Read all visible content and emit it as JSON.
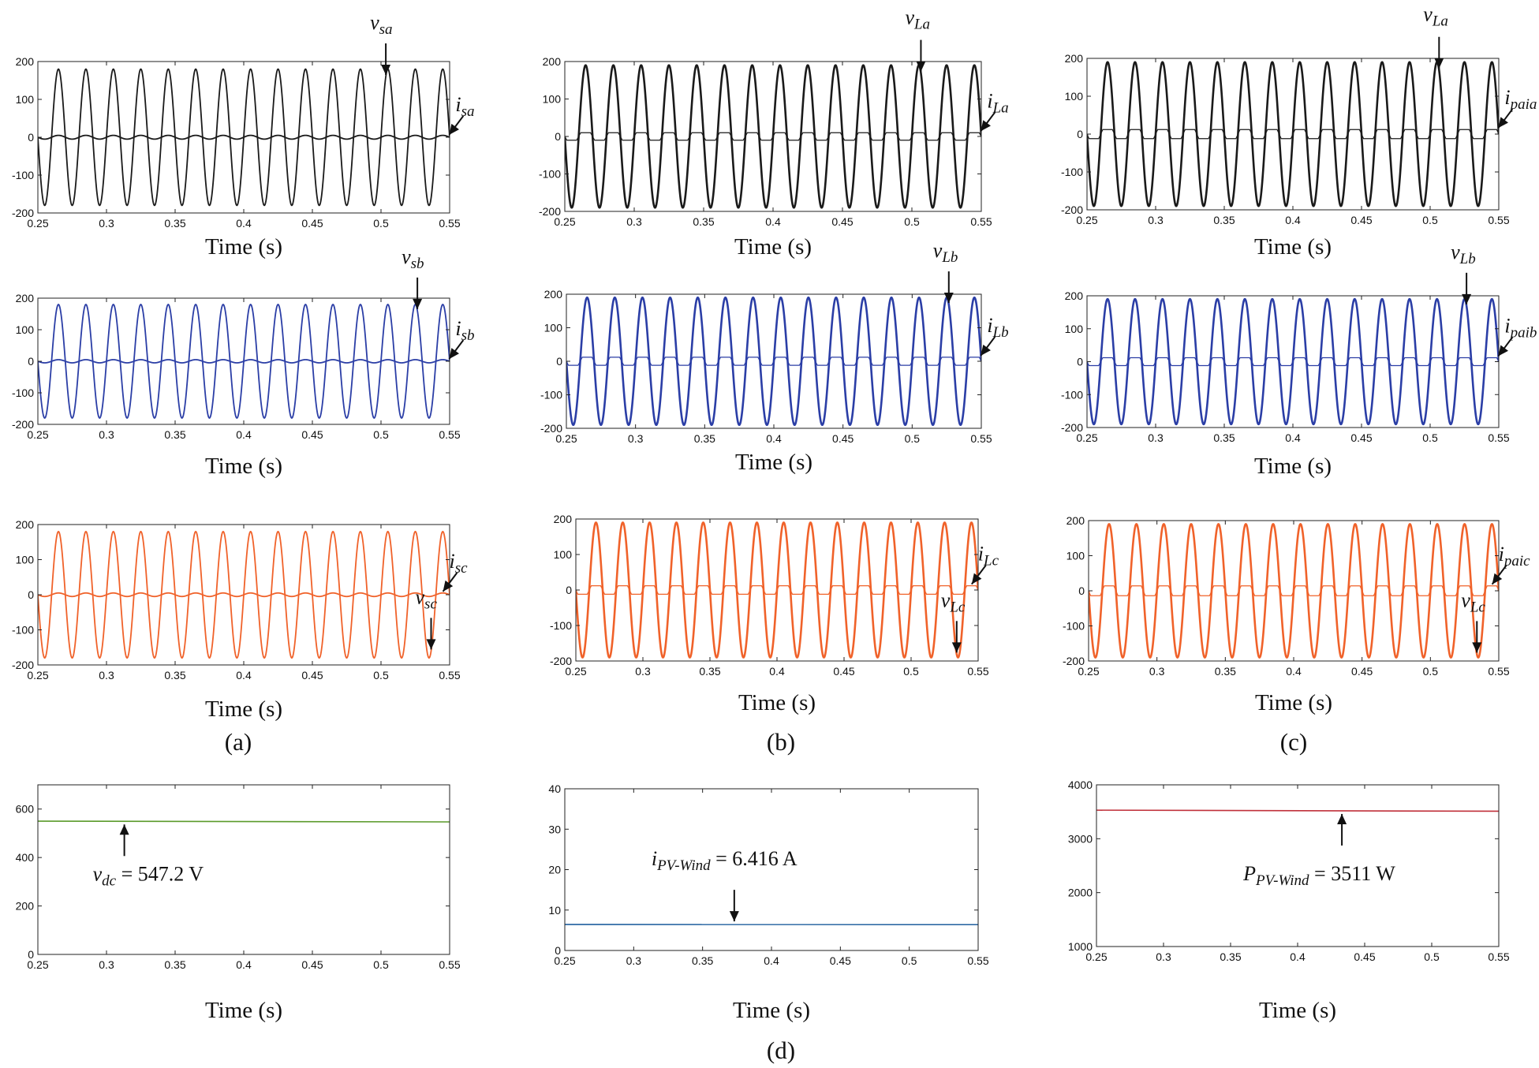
{
  "figure_labels": [
    "(a)",
    "(b)",
    "(c)",
    "(d)"
  ],
  "chart_data": [
    {
      "id": "a1",
      "type": "line",
      "xlabel": "Time (s)",
      "xlim": [
        0.25,
        0.55
      ],
      "ylim": [
        -200,
        200
      ],
      "xticks": [
        "0.25",
        "0.3",
        "0.35",
        "0.4",
        "0.45",
        "0.5",
        "0.55"
      ],
      "yticks": [
        "200",
        "100",
        "0",
        "-100",
        "-200"
      ],
      "color": "#1a1a1a",
      "series": [
        {
          "name": "v_sa",
          "kind": "sine",
          "amplitude": 180,
          "frequency_hz": 50
        },
        {
          "name": "i_sa",
          "kind": "sine",
          "amplitude": 5,
          "frequency_hz": 50
        }
      ],
      "annotations": [
        {
          "var": "v",
          "sub": "sa",
          "value": ""
        },
        {
          "var": "i",
          "sub": "sa",
          "value": ""
        }
      ]
    },
    {
      "id": "b1",
      "type": "line",
      "xlabel": "Time (s)",
      "xlim": [
        0.25,
        0.55
      ],
      "ylim": [
        -200,
        200
      ],
      "xticks": [
        "0.25",
        "0.3",
        "0.35",
        "0.4",
        "0.45",
        "0.5",
        "0.55"
      ],
      "yticks": [
        "200",
        "100",
        "0",
        "-100",
        "-200"
      ],
      "color": "#1a1a1a",
      "series": [
        {
          "name": "v_La",
          "kind": "sine",
          "amplitude": 190,
          "frequency_hz": 50
        },
        {
          "name": "i_La",
          "kind": "square",
          "amplitude": 10,
          "frequency_hz": 50
        }
      ],
      "annotations": [
        {
          "var": "v",
          "sub": "La",
          "value": ""
        },
        {
          "var": "i",
          "sub": "La",
          "value": ""
        }
      ]
    },
    {
      "id": "c1",
      "type": "line",
      "xlabel": "Time (s)",
      "xlim": [
        0.25,
        0.55
      ],
      "ylim": [
        -200,
        200
      ],
      "xticks": [
        "0.25",
        "0.3",
        "0.35",
        "0.4",
        "0.45",
        "0.5",
        "0.55"
      ],
      "yticks": [
        "200",
        "100",
        "0",
        "-100",
        "-200"
      ],
      "color": "#1a1a1a",
      "series": [
        {
          "name": "v_La",
          "kind": "sine",
          "amplitude": 190,
          "frequency_hz": 50
        },
        {
          "name": "i_paia",
          "kind": "square",
          "amplitude": 12,
          "frequency_hz": 50
        }
      ],
      "annotations": [
        {
          "var": "v",
          "sub": "La",
          "value": ""
        },
        {
          "var": "i",
          "sub": "paia",
          "value": ""
        }
      ]
    },
    {
      "id": "a2",
      "type": "line",
      "xlabel": "Time (s)",
      "xlim": [
        0.25,
        0.55
      ],
      "ylim": [
        -200,
        200
      ],
      "xticks": [
        "0.25",
        "0.3",
        "0.35",
        "0.4",
        "0.45",
        "0.5",
        "0.55"
      ],
      "yticks": [
        "200",
        "100",
        "0",
        "-100",
        "-200"
      ],
      "color": "#2b3ea6",
      "series": [
        {
          "name": "v_sb",
          "kind": "sine",
          "amplitude": 180,
          "frequency_hz": 50
        },
        {
          "name": "i_sb",
          "kind": "sine",
          "amplitude": 5,
          "frequency_hz": 50
        }
      ],
      "annotations": [
        {
          "var": "v",
          "sub": "sb",
          "value": ""
        },
        {
          "var": "i",
          "sub": "sb",
          "value": ""
        }
      ]
    },
    {
      "id": "b2",
      "type": "line",
      "xlabel": "Time (s)",
      "xlim": [
        0.25,
        0.55
      ],
      "ylim": [
        -200,
        200
      ],
      "xticks": [
        "0.25",
        "0.3",
        "0.35",
        "0.4",
        "0.45",
        "0.5",
        "0.55"
      ],
      "yticks": [
        "200",
        "100",
        "0",
        "-100",
        "-200"
      ],
      "color": "#2b3ea6",
      "series": [
        {
          "name": "v_Lb",
          "kind": "sine",
          "amplitude": 190,
          "frequency_hz": 50
        },
        {
          "name": "i_Lb",
          "kind": "square",
          "amplitude": 12,
          "frequency_hz": 50
        }
      ],
      "annotations": [
        {
          "var": "v",
          "sub": "Lb",
          "value": ""
        },
        {
          "var": "i",
          "sub": "Lb",
          "value": ""
        }
      ]
    },
    {
      "id": "c2",
      "type": "line",
      "xlabel": "Time (s)",
      "xlim": [
        0.25,
        0.55
      ],
      "ylim": [
        -200,
        200
      ],
      "xticks": [
        "0.25",
        "0.3",
        "0.35",
        "0.4",
        "0.45",
        "0.5",
        "0.55"
      ],
      "yticks": [
        "200",
        "100",
        "0",
        "-100",
        "-200"
      ],
      "color": "#2b3ea6",
      "series": [
        {
          "name": "v_Lb",
          "kind": "sine",
          "amplitude": 190,
          "frequency_hz": 50
        },
        {
          "name": "i_paib",
          "kind": "square",
          "amplitude": 12,
          "frequency_hz": 50
        }
      ],
      "annotations": [
        {
          "var": "v",
          "sub": "Lb",
          "value": ""
        },
        {
          "var": "i",
          "sub": "paib",
          "value": ""
        }
      ]
    },
    {
      "id": "a3",
      "type": "line",
      "xlabel": "Time (s)",
      "xlim": [
        0.25,
        0.55
      ],
      "ylim": [
        -200,
        200
      ],
      "xticks": [
        "0.25",
        "0.3",
        "0.35",
        "0.4",
        "0.45",
        "0.5",
        "0.55"
      ],
      "yticks": [
        "200",
        "100",
        "0",
        "-100",
        "-200"
      ],
      "color": "#f0622a",
      "series": [
        {
          "name": "v_sc",
          "kind": "sine",
          "amplitude": 180,
          "frequency_hz": 50
        },
        {
          "name": "i_sc",
          "kind": "sine",
          "amplitude": 5,
          "frequency_hz": 50
        }
      ],
      "annotations": [
        {
          "var": "v",
          "sub": "sc",
          "value": ""
        },
        {
          "var": "i",
          "sub": "sc",
          "value": ""
        }
      ]
    },
    {
      "id": "b3",
      "type": "line",
      "xlabel": "Time (s)",
      "xlim": [
        0.25,
        0.55
      ],
      "ylim": [
        -200,
        200
      ],
      "xticks": [
        "0.25",
        "0.3",
        "0.35",
        "0.4",
        "0.45",
        "0.5",
        "0.55"
      ],
      "yticks": [
        "200",
        "100",
        "0",
        "-100",
        "-200"
      ],
      "color": "#f0622a",
      "series": [
        {
          "name": "v_Lc",
          "kind": "sine",
          "amplitude": 190,
          "frequency_hz": 50
        },
        {
          "name": "i_Lc",
          "kind": "square",
          "amplitude": 12,
          "frequency_hz": 50
        }
      ],
      "annotations": [
        {
          "var": "v",
          "sub": "Lc",
          "value": ""
        },
        {
          "var": "i",
          "sub": "Lc",
          "value": ""
        }
      ]
    },
    {
      "id": "c3",
      "type": "line",
      "xlabel": "Time (s)",
      "xlim": [
        0.25,
        0.55
      ],
      "ylim": [
        -200,
        200
      ],
      "xticks": [
        "0.25",
        "0.3",
        "0.35",
        "0.4",
        "0.45",
        "0.5",
        "0.55"
      ],
      "yticks": [
        "200",
        "100",
        "0",
        "-100",
        "-200"
      ],
      "color": "#f0622a",
      "series": [
        {
          "name": "v_Lc",
          "kind": "sine",
          "amplitude": 190,
          "frequency_hz": 50
        },
        {
          "name": "i_paic",
          "kind": "square",
          "amplitude": 14,
          "frequency_hz": 50
        }
      ],
      "annotations": [
        {
          "var": "v",
          "sub": "Lc",
          "value": ""
        },
        {
          "var": "i",
          "sub": "paic",
          "value": ""
        }
      ]
    },
    {
      "id": "d1",
      "type": "line",
      "xlabel": "Time (s)",
      "xlim": [
        0.25,
        0.55
      ],
      "ylim": [
        0,
        700
      ],
      "xticks": [
        "0.25",
        "0.3",
        "0.35",
        "0.4",
        "0.45",
        "0.5",
        "0.55"
      ],
      "yticks": [
        "600",
        "400",
        "200",
        "0"
      ],
      "color": "#5a9a2a",
      "series": [
        {
          "name": "v_dc",
          "kind": "constant",
          "start": 550,
          "end": 547
        }
      ],
      "annotations": [
        {
          "var": "v",
          "sub": "dc",
          "value": " = 547.2 V"
        }
      ]
    },
    {
      "id": "d2",
      "type": "line",
      "xlabel": "Time (s)",
      "xlim": [
        0.25,
        0.55
      ],
      "ylim": [
        0,
        40
      ],
      "xticks": [
        "0.25",
        "0.3",
        "0.35",
        "0.4",
        "0.45",
        "0.5",
        "0.55"
      ],
      "yticks": [
        "40",
        "30",
        "20",
        "10",
        "0"
      ],
      "color": "#1f5f9e",
      "series": [
        {
          "name": "i_PV-Wind",
          "kind": "constant",
          "start": 6.42,
          "end": 6.41
        }
      ],
      "annotations": [
        {
          "var": "i",
          "sub": "PV-Wind",
          "value": " = 6.416 A"
        }
      ]
    },
    {
      "id": "d3",
      "type": "line",
      "xlabel": "Time (s)",
      "xlim": [
        0.25,
        0.55
      ],
      "ylim": [
        1000,
        4000
      ],
      "xticks": [
        "0.25",
        "0.3",
        "0.35",
        "0.4",
        "0.45",
        "0.5",
        "0.55"
      ],
      "yticks": [
        "4000",
        "3000",
        "2000",
        "1000"
      ],
      "color": "#c0303a",
      "series": [
        {
          "name": "P_PV-Wind",
          "kind": "constant",
          "start": 3530,
          "end": 3510
        }
      ],
      "annotations": [
        {
          "var": "P",
          "sub": "PV-Wind",
          "value": " = 3511 W"
        }
      ]
    }
  ]
}
